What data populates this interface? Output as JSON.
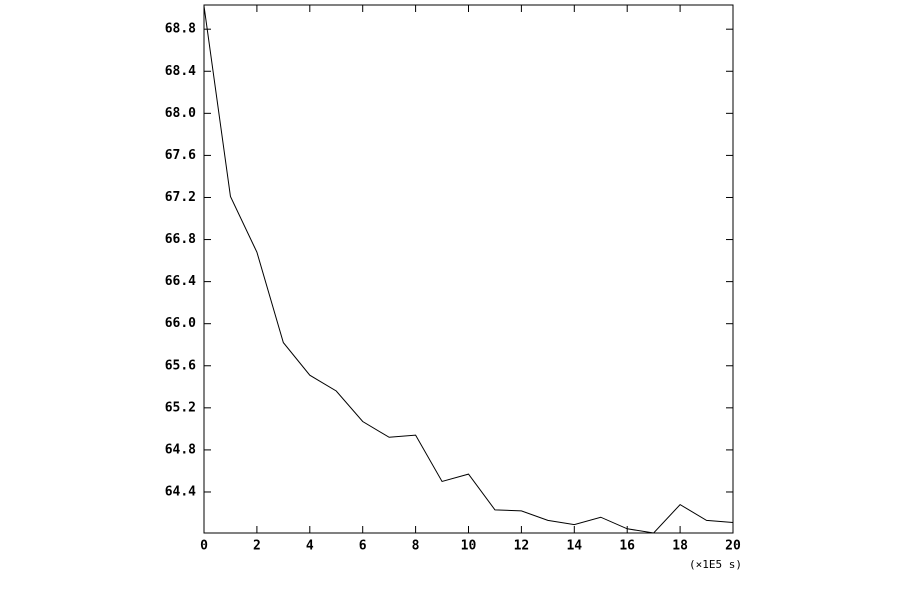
{
  "chart_data": {
    "type": "line",
    "x_unit_label": "(×1E5 s)",
    "x": [
      0,
      1,
      2,
      3,
      4,
      5,
      6,
      7,
      8,
      9,
      10,
      11,
      12,
      13,
      14,
      15,
      16,
      17,
      18,
      19,
      20
    ],
    "series": [
      {
        "color": "#000000",
        "values": [
          69.02,
          67.21,
          66.68,
          65.82,
          65.51,
          65.36,
          65.07,
          64.92,
          64.94,
          64.5,
          64.57,
          64.23,
          64.22,
          64.13,
          64.09,
          64.16,
          64.05,
          64.01,
          64.28,
          64.13,
          64.11
        ]
      }
    ],
    "xlim": [
      0,
      20
    ],
    "xticks": [
      0,
      2,
      4,
      6,
      8,
      10,
      12,
      14,
      16,
      18,
      20
    ],
    "ylim": [
      64.01,
      69.03
    ],
    "yticks": [
      64.4,
      64.8,
      65.2,
      65.6,
      {
        "value": 66,
        "label": "66.0"
      },
      66.4,
      66.8,
      67.2,
      67.6,
      {
        "value": 68,
        "label": "68.0"
      },
      68.4,
      68.8
    ],
    "grid": false
  }
}
